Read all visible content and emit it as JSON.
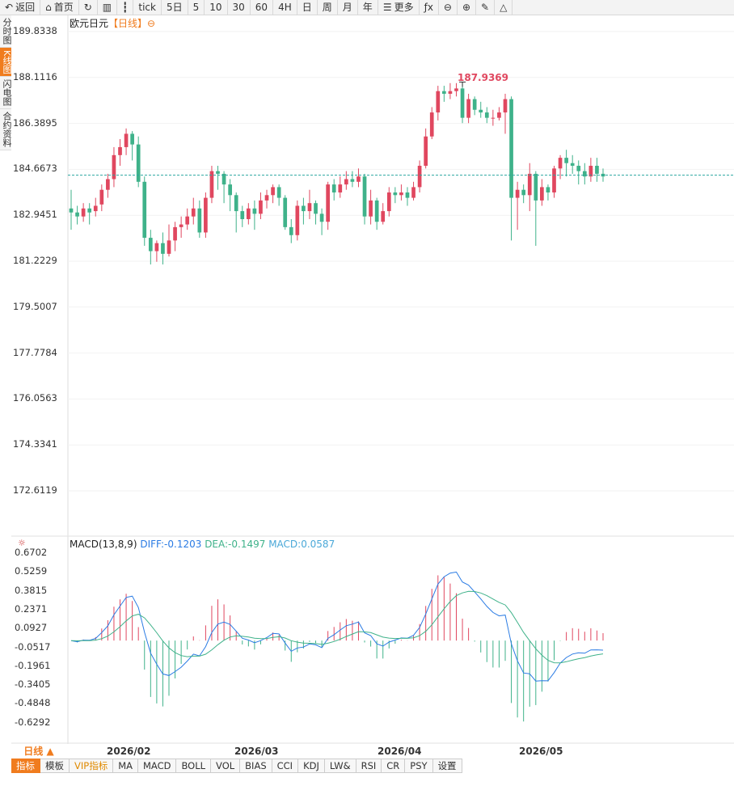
{
  "toolbar": {
    "items": [
      {
        "icon": "back-icon",
        "label": "返回"
      },
      {
        "icon": "home-icon",
        "label": "首页"
      },
      {
        "icon": "refresh-icon",
        "label": ""
      },
      {
        "icon": "bar-chart-icon",
        "label": ""
      },
      {
        "icon": "candle-icon",
        "label": ""
      },
      {
        "icon": "",
        "label": "tick"
      },
      {
        "icon": "",
        "label": "5日"
      },
      {
        "icon": "",
        "label": "5"
      },
      {
        "icon": "",
        "label": "10"
      },
      {
        "icon": "",
        "label": "30"
      },
      {
        "icon": "",
        "label": "60"
      },
      {
        "icon": "",
        "label": "4H"
      },
      {
        "icon": "",
        "label": "日"
      },
      {
        "icon": "",
        "label": "周"
      },
      {
        "icon": "",
        "label": "月"
      },
      {
        "icon": "",
        "label": "年"
      },
      {
        "icon": "menu-icon",
        "label": "更多"
      },
      {
        "icon": "function-icon",
        "label": ""
      },
      {
        "icon": "zoom-out-icon",
        "label": ""
      },
      {
        "icon": "zoom-in-icon",
        "label": ""
      },
      {
        "icon": "pen-icon",
        "label": ""
      },
      {
        "icon": "triangle-icon",
        "label": ""
      }
    ]
  },
  "sidebar": {
    "items": [
      "分时图",
      "K线图",
      "闪电图",
      "合约资料"
    ]
  },
  "chart_title": {
    "symbol": "欧元日元",
    "period": "【日线】",
    "toggle": "⊖"
  },
  "price_axis": [
    "189.8338",
    "188.1116",
    "186.3895",
    "184.6673",
    "182.9451",
    "181.2229",
    "179.5007",
    "177.7784",
    "176.0563",
    "174.3341",
    "172.6119"
  ],
  "high_mark": "187.9369",
  "macd_axis": [
    "0.6702",
    "0.5259",
    "0.3815",
    "0.2371",
    "0.0927",
    "-0.0517",
    "-0.1961",
    "-0.3405",
    "-0.4848",
    "-0.6292"
  ],
  "macd_legend": {
    "name": "MACD(13,8,9)",
    "diff": "DIFF:-0.1203",
    "dea": "DEA:-0.1497",
    "macd": "MACD:0.0587"
  },
  "x_labels": [
    "2026/02",
    "2026/03",
    "2026/04",
    "2026/05"
  ],
  "period_selector": "日线 ▲",
  "indicator_tabs": [
    "指标",
    "模板",
    "VIP指标",
    "MA",
    "MACD",
    "BOLL",
    "VOL",
    "BIAS",
    "CCI",
    "KDJ",
    "LW&",
    "RSI",
    "CR",
    "PSY",
    "设置"
  ],
  "colors": {
    "up": "#e0475f",
    "down": "#3fb28a",
    "accent": "#f07c1e",
    "diff": "#2a7be4",
    "dea": "#3fb28a"
  },
  "chart_data": {
    "type": "candlestick",
    "price_range": [
      172.6119,
      189.8338
    ],
    "last_price": 184.45,
    "candles": [
      [
        183.2,
        183.05,
        183.9,
        182.4
      ],
      [
        183.05,
        182.9,
        183.3,
        182.6
      ],
      [
        182.9,
        183.2,
        183.4,
        182.7
      ],
      [
        183.2,
        183.05,
        183.4,
        182.6
      ],
      [
        183.1,
        183.3,
        183.6,
        182.9
      ],
      [
        183.35,
        183.9,
        184.1,
        183.1
      ],
      [
        183.9,
        184.3,
        184.5,
        183.6
      ],
      [
        184.3,
        185.2,
        185.5,
        184.0
      ],
      [
        185.2,
        185.5,
        185.8,
        184.8
      ],
      [
        185.5,
        186.0,
        186.2,
        185.2
      ],
      [
        186.0,
        185.6,
        186.1,
        185.0
      ],
      [
        185.6,
        184.2,
        185.9,
        184.0
      ],
      [
        184.2,
        182.1,
        184.4,
        181.8
      ],
      [
        182.1,
        181.6,
        182.4,
        181.1
      ],
      [
        181.6,
        181.9,
        182.0,
        181.2
      ],
      [
        181.9,
        181.5,
        182.3,
        181.1
      ],
      [
        181.5,
        182.0,
        182.6,
        181.4
      ],
      [
        182.0,
        182.5,
        182.7,
        181.6
      ],
      [
        182.5,
        182.6,
        182.9,
        182.1
      ],
      [
        182.6,
        182.9,
        183.2,
        182.4
      ],
      [
        182.9,
        183.2,
        183.6,
        182.6
      ],
      [
        183.2,
        182.3,
        183.5,
        182.1
      ],
      [
        182.3,
        183.6,
        183.8,
        182.1
      ],
      [
        183.6,
        184.6,
        184.8,
        183.4
      ],
      [
        184.6,
        184.5,
        184.8,
        183.9
      ],
      [
        184.5,
        184.1,
        184.6,
        183.4
      ],
      [
        184.1,
        183.7,
        184.3,
        183.1
      ],
      [
        183.7,
        183.1,
        183.8,
        182.3
      ],
      [
        183.1,
        182.8,
        183.3,
        182.5
      ],
      [
        182.8,
        183.2,
        183.4,
        182.6
      ],
      [
        183.2,
        183.0,
        183.5,
        182.4
      ],
      [
        183.0,
        183.5,
        183.8,
        182.8
      ],
      [
        183.5,
        183.7,
        183.9,
        183.2
      ],
      [
        183.7,
        184.0,
        184.1,
        183.4
      ],
      [
        184.0,
        183.6,
        184.1,
        183.3
      ],
      [
        183.6,
        182.5,
        183.7,
        182.4
      ],
      [
        182.5,
        182.2,
        182.8,
        181.9
      ],
      [
        182.2,
        183.3,
        183.5,
        182.0
      ],
      [
        183.3,
        183.1,
        183.6,
        182.6
      ],
      [
        183.1,
        183.4,
        183.9,
        182.8
      ],
      [
        183.4,
        183.0,
        183.5,
        182.6
      ],
      [
        183.0,
        182.7,
        183.2,
        182.2
      ],
      [
        182.7,
        184.1,
        184.2,
        182.4
      ],
      [
        184.1,
        183.8,
        184.3,
        183.5
      ],
      [
        183.8,
        184.1,
        184.4,
        183.6
      ],
      [
        184.1,
        184.3,
        184.6,
        183.9
      ],
      [
        184.3,
        184.2,
        184.6,
        184.0
      ],
      [
        184.2,
        184.4,
        184.7,
        184.0
      ],
      [
        184.4,
        182.9,
        184.5,
        182.6
      ],
      [
        182.9,
        183.5,
        183.9,
        182.6
      ],
      [
        183.5,
        182.7,
        183.6,
        182.4
      ],
      [
        182.7,
        183.1,
        183.4,
        182.6
      ],
      [
        183.1,
        183.8,
        184.0,
        182.9
      ],
      [
        183.8,
        183.7,
        184.0,
        183.4
      ],
      [
        183.7,
        183.8,
        184.1,
        183.5
      ],
      [
        183.8,
        183.6,
        184.0,
        183.3
      ],
      [
        183.6,
        184.0,
        184.2,
        183.5
      ],
      [
        184.0,
        184.8,
        185.0,
        183.8
      ],
      [
        184.8,
        185.9,
        186.2,
        184.7
      ],
      [
        185.9,
        186.8,
        187.0,
        185.8
      ],
      [
        186.8,
        187.6,
        187.8,
        186.5
      ],
      [
        187.6,
        187.5,
        187.8,
        187.2
      ],
      [
        187.5,
        187.6,
        187.9,
        187.3
      ],
      [
        187.6,
        187.7,
        187.9,
        187.4
      ],
      [
        187.7,
        186.6,
        187.94,
        186.4
      ],
      [
        186.6,
        187.3,
        187.5,
        186.4
      ],
      [
        187.3,
        186.9,
        187.4,
        186.7
      ],
      [
        186.9,
        186.8,
        187.2,
        186.6
      ],
      [
        186.8,
        186.6,
        187.0,
        186.4
      ],
      [
        186.6,
        186.6,
        186.9,
        186.3
      ],
      [
        186.6,
        186.8,
        187.0,
        186.5
      ],
      [
        186.8,
        187.3,
        187.5,
        186.0
      ],
      [
        187.3,
        183.6,
        187.4,
        182.0
      ],
      [
        183.6,
        183.9,
        184.2,
        182.4
      ],
      [
        183.9,
        183.7,
        184.1,
        183.4
      ],
      [
        183.7,
        184.5,
        184.9,
        183.1
      ],
      [
        184.5,
        183.5,
        184.6,
        181.8
      ],
      [
        183.5,
        184.0,
        184.3,
        183.3
      ],
      [
        184.0,
        183.8,
        184.1,
        183.5
      ],
      [
        183.8,
        184.7,
        184.8,
        183.6
      ],
      [
        184.7,
        185.1,
        185.2,
        184.3
      ],
      [
        185.1,
        184.9,
        185.4,
        184.4
      ],
      [
        184.9,
        184.8,
        185.2,
        184.5
      ],
      [
        184.8,
        184.6,
        185.0,
        184.1
      ],
      [
        184.6,
        184.4,
        184.9,
        184.1
      ],
      [
        184.4,
        184.8,
        185.1,
        184.2
      ],
      [
        184.8,
        184.5,
        185.1,
        184.2
      ],
      [
        184.5,
        184.4,
        184.7,
        184.2
      ]
    ],
    "macd_range": [
      -0.6292,
      0.6702
    ]
  }
}
